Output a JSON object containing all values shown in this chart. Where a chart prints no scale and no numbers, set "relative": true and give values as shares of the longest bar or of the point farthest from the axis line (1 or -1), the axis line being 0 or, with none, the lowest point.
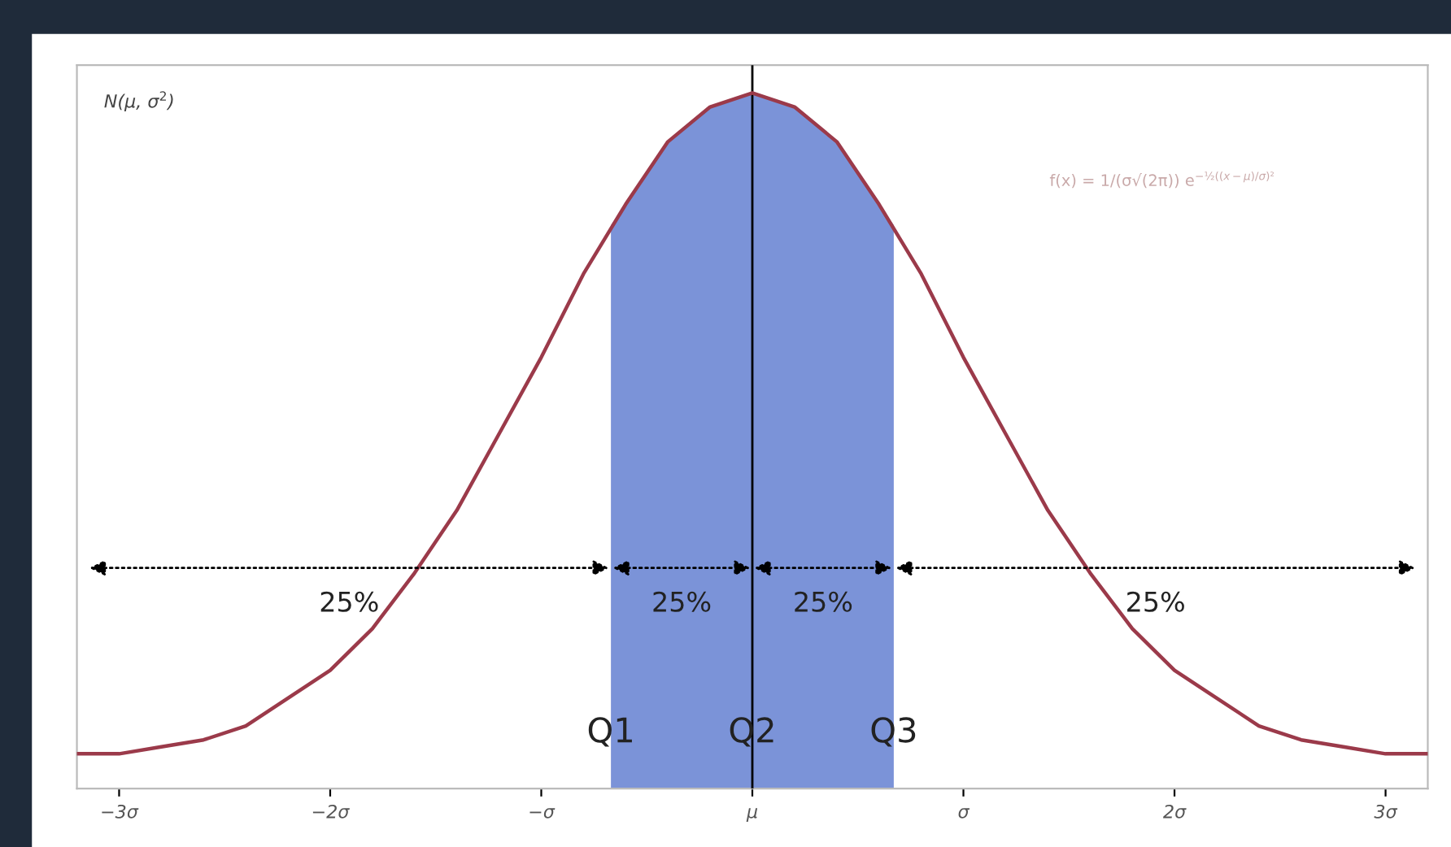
{
  "chart_data": {
    "type": "line",
    "relative": true,
    "xlim": [
      -3.2,
      3.2
    ],
    "xticks": [
      {
        "value": -3,
        "label": "−3σ"
      },
      {
        "value": -2,
        "label": "−2σ"
      },
      {
        "value": -1,
        "label": "−σ"
      },
      {
        "value": 0,
        "label": "μ"
      },
      {
        "value": 1,
        "label": "σ"
      },
      {
        "value": 2,
        "label": "2σ"
      },
      {
        "value": 3,
        "label": "3σ"
      }
    ],
    "series": [
      {
        "color": "#9b3a4a",
        "x": [
          -3.2,
          -3.0,
          -2.8,
          -2.6,
          -2.4,
          -2.2,
          -2.0,
          -1.8,
          -1.6,
          -1.4,
          -1.2,
          -1.0,
          -0.8,
          -0.6,
          -0.4,
          -0.2,
          0,
          0.2,
          0.4,
          0.6,
          0.8,
          1.0,
          1.2,
          1.4,
          1.6,
          1.8,
          2.0,
          2.2,
          2.4,
          2.6,
          2.8,
          3.0,
          3.2
        ],
        "values": [
          0.05,
          0.05,
          0.06,
          0.07,
          0.09,
          0.13,
          0.17,
          0.23,
          0.31,
          0.4,
          0.51,
          0.62,
          0.74,
          0.84,
          0.93,
          0.98,
          1.0,
          0.98,
          0.93,
          0.84,
          0.74,
          0.62,
          0.51,
          0.4,
          0.31,
          0.23,
          0.17,
          0.13,
          0.09,
          0.07,
          0.06,
          0.05,
          0.05
        ]
      },
      {
        "type": "area",
        "color": "#7b93d8",
        "x": [
          -0.67,
          -0.6,
          -0.4,
          -0.2,
          0,
          0.2,
          0.4,
          0.6,
          0.67
        ],
        "values": [
          0.81,
          0.84,
          0.93,
          0.98,
          1.0,
          0.98,
          0.93,
          0.84,
          0.81
        ]
      }
    ],
    "ref_lines": [
      {
        "axis": "x",
        "value": 0,
        "color": "#000000"
      }
    ],
    "annotations": [
      "25%",
      "25%",
      "25%",
      "25%",
      {
        "text": "Q1",
        "x": -0.67,
        "y": 0.08
      },
      {
        "text": "Q2",
        "x": 0,
        "y": 0.08
      },
      {
        "text": "Q3",
        "x": 0.67,
        "y": 0.08
      },
      "N(μ, σ$^{2}$)",
      "f(x) = 1/(σ√(2π)) e$^{−½((x−μ)/σ)²}$"
    ],
    "grid": false,
    "legend": false
  }
}
